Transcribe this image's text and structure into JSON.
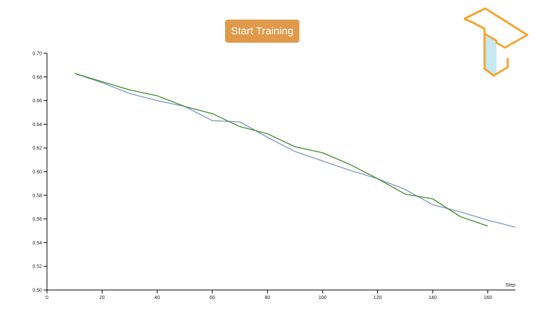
{
  "toolbar": {
    "start_label": "Start Training"
  },
  "logo": {
    "icon": "tensorboard-logo-icon",
    "stroke_color": "#f5a533",
    "fill_color": "#bfe6ef"
  },
  "colors": {
    "button": "#e09a4b",
    "series_blue": "#7f96c2",
    "series_green": "#3d8a2b"
  },
  "chart_data": {
    "type": "line",
    "title": "",
    "xlabel": "Step",
    "ylabel": "",
    "xlim": [
      0,
      170
    ],
    "ylim": [
      0.5,
      0.7
    ],
    "x_ticks": [
      0,
      20,
      40,
      60,
      80,
      100,
      120,
      140,
      160
    ],
    "x_tick_labels": [
      "0",
      "20",
      "40",
      "60",
      "80",
      "100",
      "120",
      "140",
      "160"
    ],
    "y_ticks": [
      0.5,
      0.52,
      0.54,
      0.56,
      0.58,
      0.6,
      0.62,
      0.64,
      0.66,
      0.68,
      0.7
    ],
    "y_tick_labels": [
      "0.50",
      "0.52",
      "0.54",
      "0.56",
      "0.58",
      "0.60",
      "0.62",
      "0.64",
      "0.66",
      "0.68",
      "0.70"
    ],
    "grid": false,
    "series": [
      {
        "color": "#7f96c2",
        "x": [
          10,
          20,
          30,
          40,
          50,
          60,
          70,
          80,
          90,
          100,
          110,
          120,
          130,
          140,
          150,
          160,
          170
        ],
        "y": [
          0.683,
          0.675,
          0.666,
          0.66,
          0.655,
          0.643,
          0.642,
          0.629,
          0.617,
          0.609,
          0.601,
          0.594,
          0.585,
          0.572,
          0.566,
          0.559,
          0.553
        ]
      },
      {
        "color": "#3d8a2b",
        "x": [
          10,
          20,
          30,
          40,
          50,
          60,
          70,
          80,
          90,
          100,
          110,
          120,
          130,
          140,
          150,
          160
        ],
        "y": [
          0.683,
          0.676,
          0.669,
          0.664,
          0.655,
          0.649,
          0.638,
          0.632,
          0.621,
          0.616,
          0.606,
          0.594,
          0.581,
          0.577,
          0.562,
          0.554
        ]
      }
    ]
  }
}
